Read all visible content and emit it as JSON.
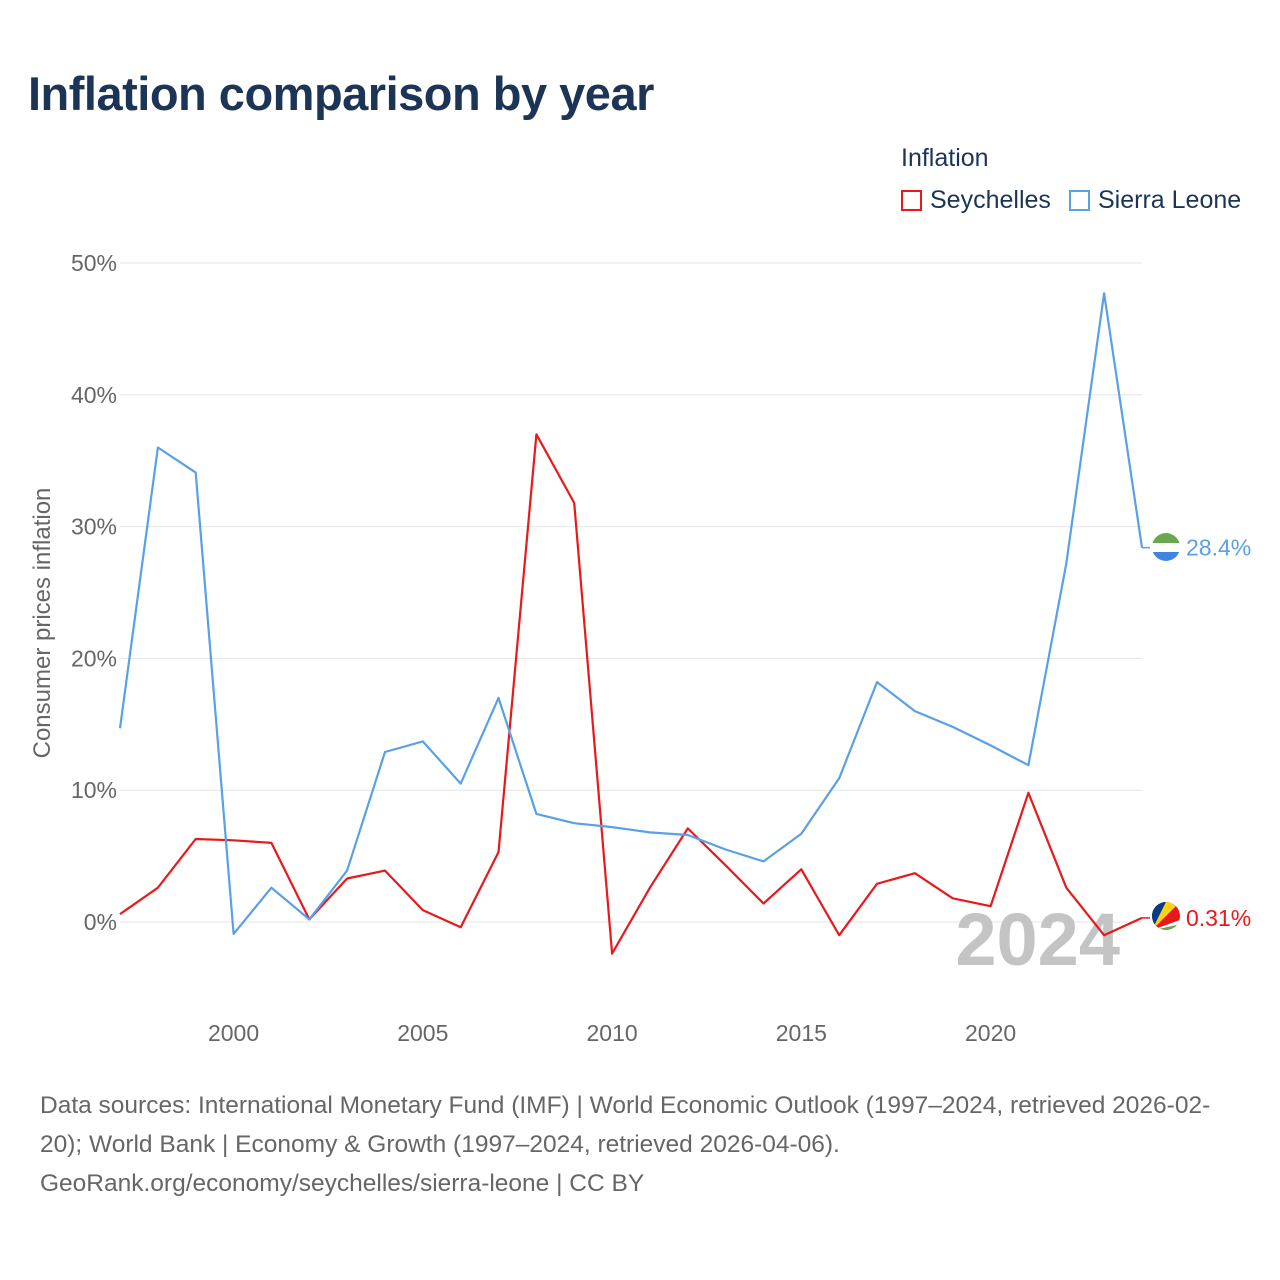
{
  "title": "Inflation comparison by year",
  "legend": {
    "title": "Inflation",
    "items": [
      {
        "label": "Seychelles",
        "color": "#e8191c"
      },
      {
        "label": "Sierra Leone",
        "color": "#5aa0e6"
      }
    ]
  },
  "year_label": "2024",
  "footer": {
    "sources": "Data sources: International Monetary Fund (IMF) | World Economic Outlook (1997–2024, retrieved 2026-02-20); World Bank | Economy & Growth (1997–2024, retrieved 2026-04-06).",
    "credit": "GeoRank.org/economy/seychelles/sierra-leone | CC BY"
  },
  "chart_data": {
    "type": "line",
    "title": "Inflation comparison by year",
    "xlabel": "",
    "ylabel": "Consumer prices inflation",
    "xlim": [
      1997,
      2024
    ],
    "ylim": [
      -5,
      50
    ],
    "x_ticks": [
      2000,
      2005,
      2010,
      2015,
      2020
    ],
    "y_ticks": [
      0,
      10,
      20,
      30,
      40,
      50
    ],
    "y_tick_labels": [
      "0%",
      "10%",
      "20%",
      "30%",
      "40%",
      "50%"
    ],
    "grid": true,
    "legend_position": "top-right",
    "x": [
      1997,
      1998,
      1999,
      2000,
      2001,
      2002,
      2003,
      2004,
      2005,
      2006,
      2007,
      2008,
      2009,
      2010,
      2011,
      2012,
      2013,
      2014,
      2015,
      2016,
      2017,
      2018,
      2019,
      2020,
      2021,
      2022,
      2023,
      2024
    ],
    "series": [
      {
        "name": "Seychelles",
        "color": "#e8191c",
        "values": [
          0.6,
          2.6,
          6.3,
          6.2,
          6.0,
          0.2,
          3.3,
          3.9,
          0.9,
          -0.4,
          5.3,
          37.0,
          31.8,
          -2.4,
          2.6,
          7.1,
          4.3,
          1.4,
          4.0,
          -1.0,
          2.9,
          3.7,
          1.8,
          1.2,
          9.8,
          2.6,
          -1.0,
          0.31
        ],
        "end_label": "0.31%"
      },
      {
        "name": "Sierra Leone",
        "color": "#5aa0e6",
        "values": [
          14.7,
          36.0,
          34.1,
          -0.9,
          2.6,
          0.2,
          3.9,
          12.9,
          13.7,
          10.5,
          17.0,
          8.2,
          7.5,
          7.2,
          6.8,
          6.6,
          5.5,
          4.6,
          6.7,
          10.9,
          18.2,
          16.0,
          14.8,
          13.4,
          11.9,
          27.2,
          47.7,
          28.4
        ],
        "end_label": "28.4%"
      }
    ]
  }
}
